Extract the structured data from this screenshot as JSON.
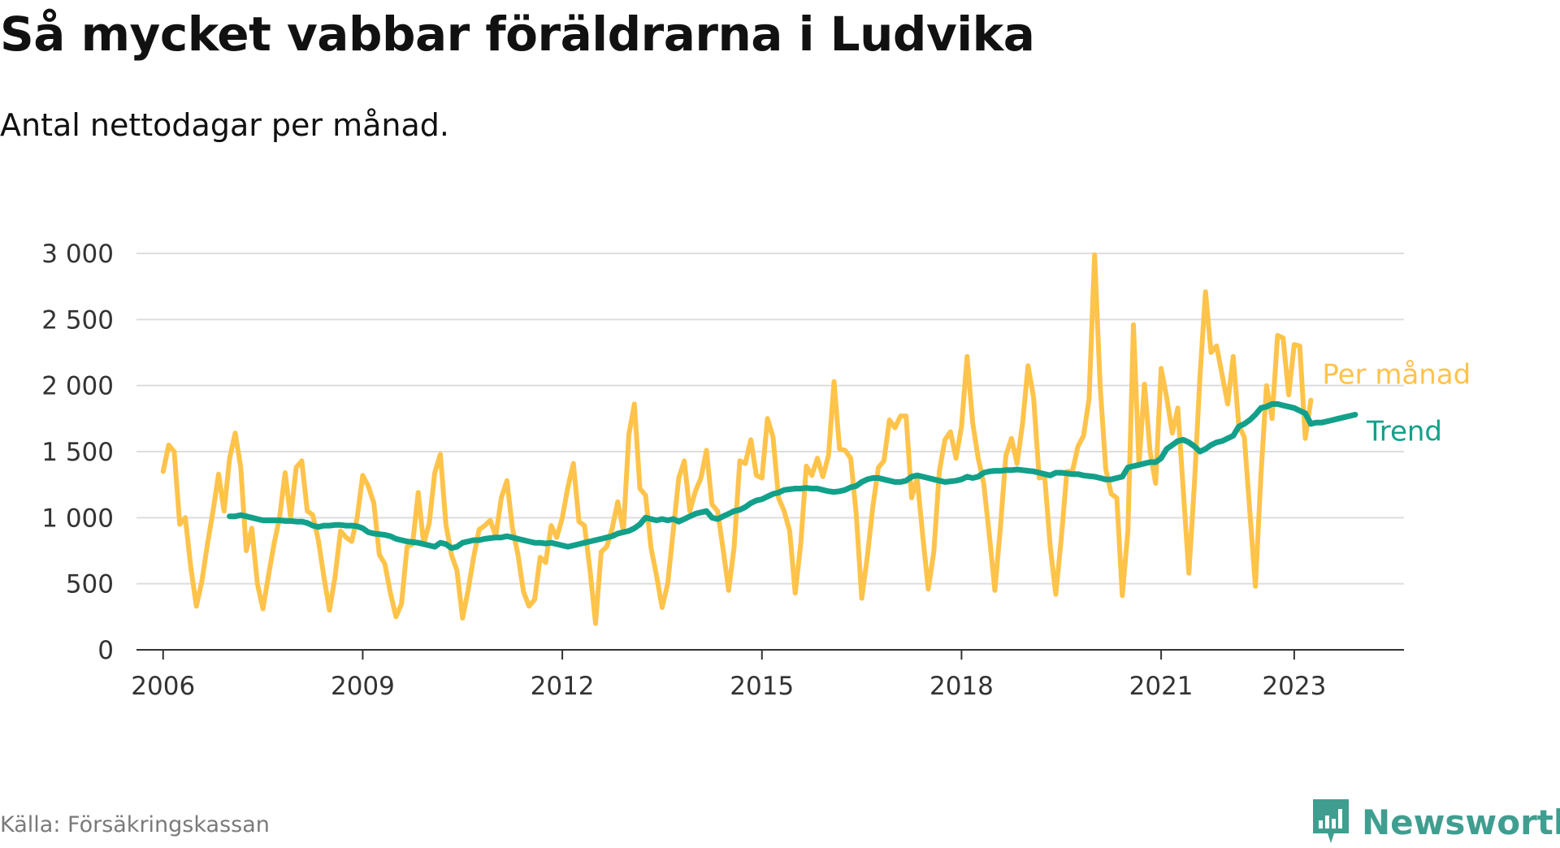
{
  "header": {
    "title": "Så mycket vabbar föräldrarna i Ludvika",
    "subtitle": "Antal nettodagar per månad."
  },
  "footer": {
    "source": "Källa: Försäkringskassan",
    "brand": "Newsworthy"
  },
  "chart_data": {
    "type": "line",
    "ylim": [
      0,
      3000
    ],
    "yticks": [
      0,
      500,
      1000,
      1500,
      2000,
      2500,
      3000
    ],
    "ytick_labels": [
      "0",
      "500",
      "1 000",
      "1 500",
      "2 000",
      "2 500",
      "3 000"
    ],
    "xticks": [
      2006,
      2009,
      2012,
      2015,
      2018,
      2021,
      2023
    ],
    "xtick_labels": [
      "2006",
      "2009",
      "2012",
      "2015",
      "2018",
      "2021",
      "2023"
    ],
    "grid": true,
    "colors": {
      "per_manad": "#fec34a",
      "trend": "#12a08a",
      "grid": "#dddddd",
      "axis": "#333333"
    },
    "series": [
      {
        "name": "Per månad",
        "start": "2006-01",
        "values": [
          1350,
          1550,
          1500,
          950,
          1000,
          620,
          330,
          520,
          800,
          1050,
          1330,
          1050,
          1450,
          1640,
          1380,
          750,
          920,
          500,
          310,
          560,
          800,
          1000,
          1340,
          1000,
          1380,
          1430,
          1050,
          1020,
          830,
          550,
          300,
          550,
          900,
          850,
          820,
          1000,
          1320,
          1240,
          1110,
          720,
          650,
          430,
          250,
          350,
          780,
          800,
          1190,
          800,
          960,
          1340,
          1480,
          950,
          720,
          600,
          240,
          450,
          700,
          910,
          940,
          980,
          860,
          1150,
          1280,
          920,
          720,
          440,
          330,
          380,
          700,
          660,
          940,
          850,
          1000,
          1230,
          1410,
          970,
          940,
          600,
          200,
          740,
          780,
          920,
          1120,
          900,
          1630,
          1860,
          1220,
          1170,
          770,
          560,
          320,
          500,
          900,
          1300,
          1430,
          1050,
          1200,
          1300,
          1510,
          1100,
          1050,
          760,
          450,
          780,
          1430,
          1410,
          1590,
          1320,
          1300,
          1750,
          1610,
          1150,
          1050,
          900,
          430,
          800,
          1390,
          1320,
          1450,
          1310,
          1470,
          2030,
          1520,
          1510,
          1450,
          1030,
          390,
          700,
          1080,
          1380,
          1430,
          1740,
          1680,
          1770,
          1770,
          1150,
          1300,
          860,
          460,
          740,
          1350,
          1590,
          1650,
          1450,
          1690,
          2220,
          1720,
          1450,
          1260,
          870,
          450,
          920,
          1470,
          1600,
          1410,
          1710,
          2150,
          1910,
          1300,
          1310,
          780,
          420,
          850,
          1350,
          1350,
          1540,
          1620,
          1900,
          2990,
          2000,
          1370,
          1180,
          1150,
          410,
          900,
          2460,
          1400,
          2010,
          1500,
          1260,
          2130,
          1910,
          1640,
          1830,
          1200,
          580,
          1250,
          2070,
          2710,
          2250,
          2300,
          2080,
          1860,
          2220,
          1700,
          1610,
          1040,
          480,
          1320,
          2000,
          1750,
          2380,
          2360,
          1930,
          2310,
          2300,
          1600,
          1890
        ],
        "end_label": "Per månad"
      },
      {
        "name": "Trend",
        "start": "2007-01",
        "values": [
          1010,
          1010,
          1020,
          1010,
          1000,
          990,
          980,
          980,
          980,
          980,
          975,
          975,
          970,
          970,
          960,
          940,
          930,
          940,
          940,
          945,
          945,
          940,
          940,
          935,
          920,
          890,
          880,
          875,
          870,
          860,
          840,
          830,
          820,
          815,
          810,
          800,
          790,
          780,
          810,
          800,
          770,
          780,
          810,
          820,
          830,
          830,
          840,
          845,
          850,
          850,
          860,
          850,
          840,
          830,
          820,
          810,
          810,
          805,
          810,
          800,
          790,
          780,
          790,
          800,
          810,
          820,
          830,
          840,
          850,
          860,
          880,
          890,
          900,
          920,
          950,
          1000,
          990,
          980,
          990,
          980,
          990,
          970,
          990,
          1010,
          1030,
          1040,
          1050,
          1000,
          990,
          1010,
          1030,
          1050,
          1060,
          1080,
          1110,
          1130,
          1140,
          1160,
          1180,
          1190,
          1210,
          1215,
          1220,
          1220,
          1225,
          1220,
          1220,
          1210,
          1200,
          1195,
          1200,
          1210,
          1230,
          1240,
          1270,
          1290,
          1300,
          1300,
          1290,
          1280,
          1270,
          1270,
          1280,
          1310,
          1320,
          1310,
          1300,
          1290,
          1280,
          1270,
          1275,
          1280,
          1290,
          1310,
          1300,
          1310,
          1340,
          1350,
          1355,
          1355,
          1360,
          1360,
          1365,
          1360,
          1355,
          1350,
          1340,
          1330,
          1320,
          1340,
          1340,
          1335,
          1330,
          1330,
          1320,
          1315,
          1310,
          1300,
          1290,
          1290,
          1300,
          1310,
          1380,
          1390,
          1400,
          1410,
          1420,
          1420,
          1450,
          1520,
          1550,
          1580,
          1590,
          1570,
          1540,
          1500,
          1520,
          1550,
          1570,
          1580,
          1600,
          1620,
          1690,
          1710,
          1740,
          1780,
          1830,
          1840,
          1860,
          1860,
          1850,
          1840,
          1830,
          1810,
          1790,
          1710,
          1720,
          1720,
          1730,
          1740,
          1750,
          1760,
          1770,
          1780
        ],
        "end_label": "Trend"
      }
    ]
  }
}
